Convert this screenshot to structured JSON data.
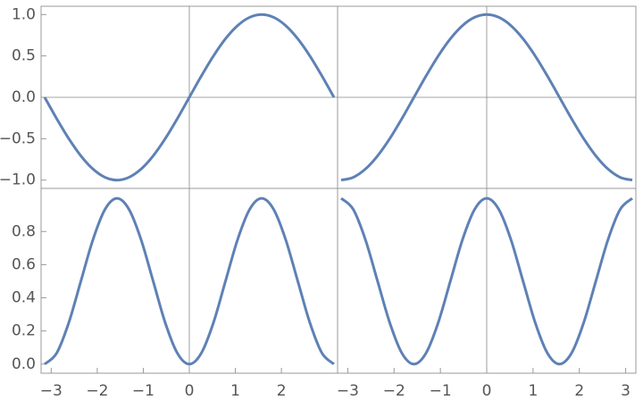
{
  "chart_data": [
    {
      "type": "line",
      "x": [
        -3.142,
        -2.88,
        -2.618,
        -2.356,
        -2.094,
        -1.833,
        -1.571,
        -1.309,
        -1.047,
        -0.785,
        -0.524,
        -0.262,
        0,
        0.262,
        0.524,
        0.785,
        1.047,
        1.309,
        1.571,
        1.833,
        2.094,
        2.356,
        2.618,
        2.88,
        3.142
      ],
      "series": [
        {
          "color": "#5e81b5",
          "values": [
            0,
            -0.259,
            -0.5,
            -0.707,
            -0.866,
            -0.966,
            -1,
            -0.966,
            -0.866,
            -0.707,
            -0.5,
            -0.259,
            0,
            0.259,
            0.5,
            0.707,
            0.866,
            0.966,
            1,
            0.966,
            0.866,
            0.707,
            0.5,
            0.259,
            0
          ]
        }
      ],
      "xlim": [
        -3.22,
        3.22
      ],
      "ylim": [
        -1.1,
        1.1
      ],
      "yticks": [
        {
          "value": -1,
          "label": "−1.0"
        },
        {
          "value": -0.5,
          "label": "−0.5"
        },
        {
          "value": 0,
          "label": "0.0"
        },
        0.5,
        {
          "value": 1,
          "label": "1.0"
        }
      ]
    },
    {
      "type": "line",
      "x": [
        -3.142,
        -2.88,
        -2.618,
        -2.356,
        -2.094,
        -1.833,
        -1.571,
        -1.309,
        -1.047,
        -0.785,
        -0.524,
        -0.262,
        0,
        0.262,
        0.524,
        0.785,
        1.047,
        1.309,
        1.571,
        1.833,
        2.094,
        2.356,
        2.618,
        2.88,
        3.142
      ],
      "series": [
        {
          "color": "#5e81b5",
          "values": [
            -1,
            -0.966,
            -0.866,
            -0.707,
            -0.5,
            -0.259,
            0,
            0.259,
            0.5,
            0.707,
            0.866,
            0.966,
            1,
            0.966,
            0.866,
            0.707,
            0.5,
            0.259,
            0,
            -0.259,
            -0.5,
            -0.707,
            -0.866,
            -0.966,
            -1
          ]
        }
      ],
      "xlim": [
        -3.22,
        3.22
      ],
      "ylim": [
        -1.1,
        1.1
      ]
    },
    {
      "type": "line",
      "x": [
        -3.142,
        -2.88,
        -2.618,
        -2.356,
        -2.094,
        -1.833,
        -1.571,
        -1.309,
        -1.047,
        -0.785,
        -0.524,
        -0.262,
        0,
        0.262,
        0.524,
        0.785,
        1.047,
        1.309,
        1.571,
        1.833,
        2.094,
        2.356,
        2.618,
        2.88,
        3.142
      ],
      "series": [
        {
          "color": "#5e81b5",
          "values": [
            0,
            0.067,
            0.25,
            0.5,
            0.75,
            0.933,
            1,
            0.933,
            0.75,
            0.5,
            0.25,
            0.067,
            0,
            0.067,
            0.25,
            0.5,
            0.75,
            0.933,
            1,
            0.933,
            0.75,
            0.5,
            0.25,
            0.067,
            0
          ]
        }
      ],
      "xlim": [
        -3.22,
        3.22
      ],
      "ylim": [
        -0.055,
        1.06
      ],
      "xticks": [
        {
          "value": -3,
          "label": "−3"
        },
        {
          "value": -2,
          "label": "−2"
        },
        {
          "value": -1,
          "label": "−1"
        },
        0,
        1,
        2
      ],
      "yticks": [
        {
          "value": 0,
          "label": "0.0"
        },
        0.2,
        0.4,
        0.6,
        0.8
      ]
    },
    {
      "type": "line",
      "x": [
        -3.142,
        -2.88,
        -2.618,
        -2.356,
        -2.094,
        -1.833,
        -1.571,
        -1.309,
        -1.047,
        -0.785,
        -0.524,
        -0.262,
        0,
        0.262,
        0.524,
        0.785,
        1.047,
        1.309,
        1.571,
        1.833,
        2.094,
        2.356,
        2.618,
        2.88,
        3.142
      ],
      "series": [
        {
          "color": "#5e81b5",
          "values": [
            1,
            0.933,
            0.75,
            0.5,
            0.25,
            0.067,
            0,
            0.067,
            0.25,
            0.5,
            0.75,
            0.933,
            1,
            0.933,
            0.75,
            0.5,
            0.25,
            0.067,
            0,
            0.067,
            0.25,
            0.5,
            0.75,
            0.933,
            1
          ]
        }
      ],
      "xlim": [
        -3.22,
        3.22
      ],
      "ylim": [
        -0.055,
        1.06
      ],
      "xticks": [
        {
          "value": -3,
          "label": "−3"
        },
        {
          "value": -2,
          "label": "−2"
        },
        {
          "value": -1,
          "label": "−1"
        },
        0,
        1,
        2,
        3
      ]
    }
  ]
}
